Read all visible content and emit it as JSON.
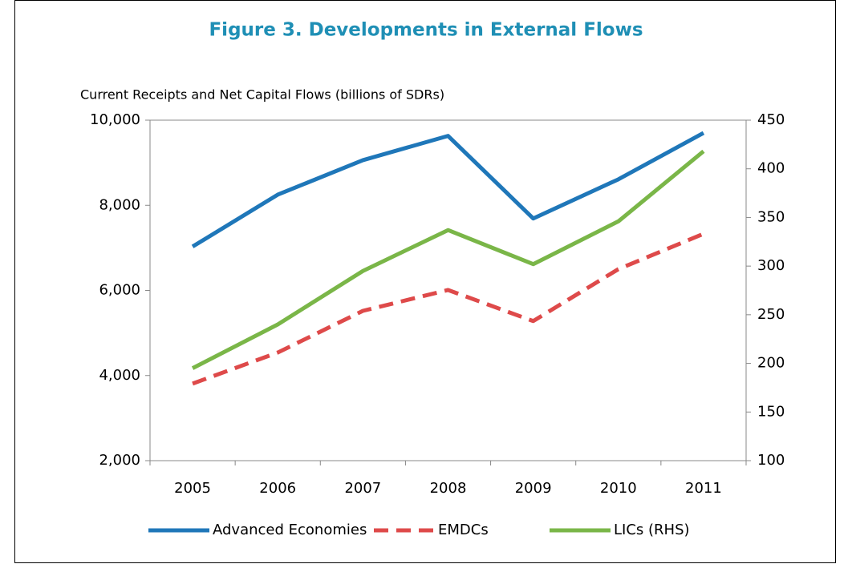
{
  "chart_data": {
    "type": "line",
    "title": "Figure 3.  Developments in External Flows",
    "y_label": "Current Receipts and Net Capital Flows  (billions of SDRs)",
    "categories": [
      "2005",
      "2006",
      "2007",
      "2008",
      "2009",
      "2010",
      "2011"
    ],
    "series": [
      {
        "name": "Advanced Economies",
        "color": "#1f77b9",
        "dash": false,
        "values": [
          7030,
          8250,
          9060,
          9630,
          7690,
          8610,
          9700
        ]
      },
      {
        "name": "EMDCs",
        "color": "#de4a4a",
        "dash": true,
        "values": [
          3810,
          4540,
          5520,
          6010,
          5280,
          6500,
          7330
        ]
      },
      {
        "name": "LICs (RHS)",
        "color": "#7ab648",
        "dash": false,
        "axis": "y2",
        "values": [
          195,
          240,
          295,
          337,
          302,
          346,
          418
        ]
      }
    ],
    "ylim": [
      2000,
      10000
    ],
    "yticks": [
      {
        "value": 2000,
        "label": "2,000"
      },
      {
        "value": 4000,
        "label": "4,000"
      },
      {
        "value": 6000,
        "label": "6,000"
      },
      {
        "value": 8000,
        "label": "8,000"
      },
      {
        "value": 10000,
        "label": "10,000"
      }
    ],
    "y2lim": [
      100,
      450
    ],
    "y2ticks": [
      100,
      150,
      200,
      250,
      300,
      350,
      400,
      450
    ]
  }
}
